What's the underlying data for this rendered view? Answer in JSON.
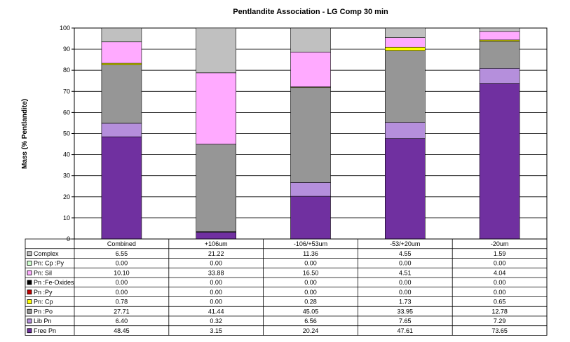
{
  "chart_data": {
    "type": "bar",
    "stacked": true,
    "title": "Pentlandite Association - LG Comp 30 min",
    "ylabel": "Mass (% Pentlandite)",
    "xlabel": "",
    "ylim": [
      0,
      100
    ],
    "yticks": [
      0,
      10,
      20,
      30,
      40,
      50,
      60,
      70,
      80,
      90,
      100
    ],
    "grid": true,
    "legend": "data-table",
    "categories": [
      "Combined",
      "+106um",
      "-106/+53um",
      "-53/+20um",
      "-20um"
    ],
    "series": [
      {
        "name": "Free Pn",
        "color": "#7030a0",
        "values": [
          48.45,
          3.15,
          20.24,
          47.61,
          73.65
        ],
        "labels": [
          "48.45",
          "3.15",
          "20.24",
          "47.61",
          "73.65"
        ]
      },
      {
        "name": "Lib Pn",
        "color": "#b58fdc",
        "values": [
          6.4,
          0.32,
          6.56,
          7.65,
          7.29
        ],
        "labels": [
          "6.40",
          "0.32",
          "6.56",
          "7.65",
          "7.29"
        ]
      },
      {
        "name": "Pn  :Po",
        "color": "#969696",
        "values": [
          27.71,
          41.44,
          45.05,
          33.95,
          12.78
        ],
        "labels": [
          "27.71",
          "41.44",
          "45.05",
          "33.95",
          "12.78"
        ]
      },
      {
        "name": "Pn: Cp",
        "color": "#ffff00",
        "values": [
          0.78,
          0.0,
          0.28,
          1.73,
          0.65
        ],
        "labels": [
          "0.78",
          "0.00",
          "0.28",
          "1.73",
          "0.65"
        ]
      },
      {
        "name": "Pn :Py",
        "color": "#c00000",
        "values": [
          0.0,
          0.0,
          0.0,
          0.0,
          0.0
        ],
        "labels": [
          "0.00",
          "0.00",
          "0.00",
          "0.00",
          "0.00"
        ]
      },
      {
        "name": "Pn :Fe-Oxides",
        "color": "#000000",
        "values": [
          0.0,
          0.0,
          0.0,
          0.0,
          0.0
        ],
        "labels": [
          "0.00",
          "0.00",
          "0.00",
          "0.00",
          "0.00"
        ]
      },
      {
        "name": "Pn: Sil",
        "color": "#ffaaff",
        "values": [
          10.1,
          33.88,
          16.5,
          4.51,
          4.04
        ],
        "labels": [
          "10.10",
          "33.88",
          "16.50",
          "4.51",
          "4.04"
        ]
      },
      {
        "name": "Pn: Cp :Py",
        "color": "#ccffcc",
        "values": [
          0.0,
          0.0,
          0.0,
          0.0,
          0.0
        ],
        "labels": [
          "0.00",
          "0.00",
          "0.00",
          "0.00",
          "0.00"
        ]
      },
      {
        "name": "Complex",
        "color": "#c0c0c0",
        "values": [
          6.55,
          21.22,
          11.36,
          4.55,
          1.59
        ],
        "labels": [
          "6.55",
          "21.22",
          "11.36",
          "4.55",
          "1.59"
        ]
      }
    ]
  }
}
